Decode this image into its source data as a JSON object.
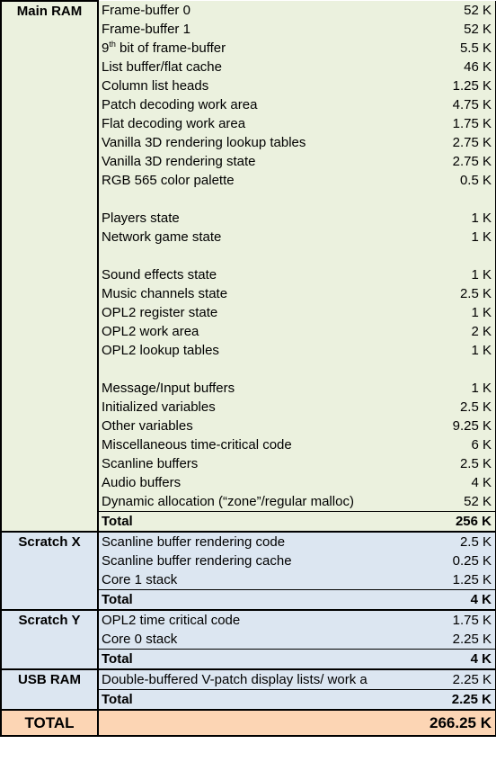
{
  "sections": [
    {
      "name": "Main RAM",
      "color": "#ebf1de",
      "groups": [
        [
          {
            "label": "Frame-buffer 0",
            "value": "52 K"
          },
          {
            "label": "Frame-buffer 1",
            "value": "52 K"
          },
          {
            "label": {
              "base": "9",
              "sup": "th",
              "rest": " bit of frame-buffer"
            },
            "value": "5.5 K"
          },
          {
            "label": "List buffer/flat cache",
            "value": "46 K"
          },
          {
            "label": "Column list heads",
            "value": "1.25 K"
          },
          {
            "label": "Patch decoding work area",
            "value": "4.75 K"
          },
          {
            "label": "Flat decoding work area",
            "value": "1.75 K"
          },
          {
            "label": "Vanilla 3D rendering lookup tables",
            "value": "2.75 K"
          },
          {
            "label": "Vanilla 3D rendering state",
            "value": "2.75 K"
          },
          {
            "label": "RGB 565 color palette",
            "value": "0.5 K"
          }
        ],
        [
          {
            "label": "Players state",
            "value": "1 K"
          },
          {
            "label": "Network game state",
            "value": "1 K"
          }
        ],
        [
          {
            "label": "Sound effects state",
            "value": "1 K"
          },
          {
            "label": "Music channels state",
            "value": "2.5 K"
          },
          {
            "label": "OPL2 register state",
            "value": "1 K"
          },
          {
            "label": "OPL2 work area",
            "value": "2 K"
          },
          {
            "label": "OPL2 lookup tables",
            "value": "1 K"
          }
        ],
        [
          {
            "label": "Message/Input buffers",
            "value": "1 K"
          },
          {
            "label": "Initialized variables",
            "value": "2.5 K"
          },
          {
            "label": "Other variables",
            "value": "9.25 K"
          },
          {
            "label": "Miscellaneous time-critical code",
            "value": "6 K"
          },
          {
            "label": "Scanline buffers",
            "value": "2.5 K"
          },
          {
            "label": "Audio buffers",
            "value": "4 K"
          },
          {
            "label": "Dynamic allocation (“zone”/regular malloc)",
            "value": "52 K"
          }
        ]
      ],
      "total": {
        "label": "Total",
        "value": "256 K"
      }
    },
    {
      "name": "Scratch X",
      "color": "#dce6f1",
      "groups": [
        [
          {
            "label": "Scanline buffer rendering code",
            "value": "2.5 K"
          },
          {
            "label": "Scanline buffer rendering cache",
            "value": "0.25 K"
          },
          {
            "label": "Core 1 stack",
            "value": "1.25 K"
          }
        ]
      ],
      "total": {
        "label": "Total",
        "value": "4 K"
      }
    },
    {
      "name": "Scratch Y",
      "color": "#dce6f1",
      "groups": [
        [
          {
            "label": "OPL2 time critical code",
            "value": "1.75 K"
          },
          {
            "label": "Core 0 stack",
            "value": "2.25 K"
          }
        ]
      ],
      "total": {
        "label": "Total",
        "value": "4 K"
      }
    },
    {
      "name": "USB RAM",
      "color": "#dce6f1",
      "groups": [
        [
          {
            "label": "Double-buffered V-patch display lists/ work a",
            "value": "2.25 K"
          }
        ]
      ],
      "total": {
        "label": "Total",
        "value": "2.25 K"
      }
    }
  ],
  "grand_total": {
    "label": "TOTAL",
    "value": "266.25 K",
    "color": "#fcd5b4"
  }
}
